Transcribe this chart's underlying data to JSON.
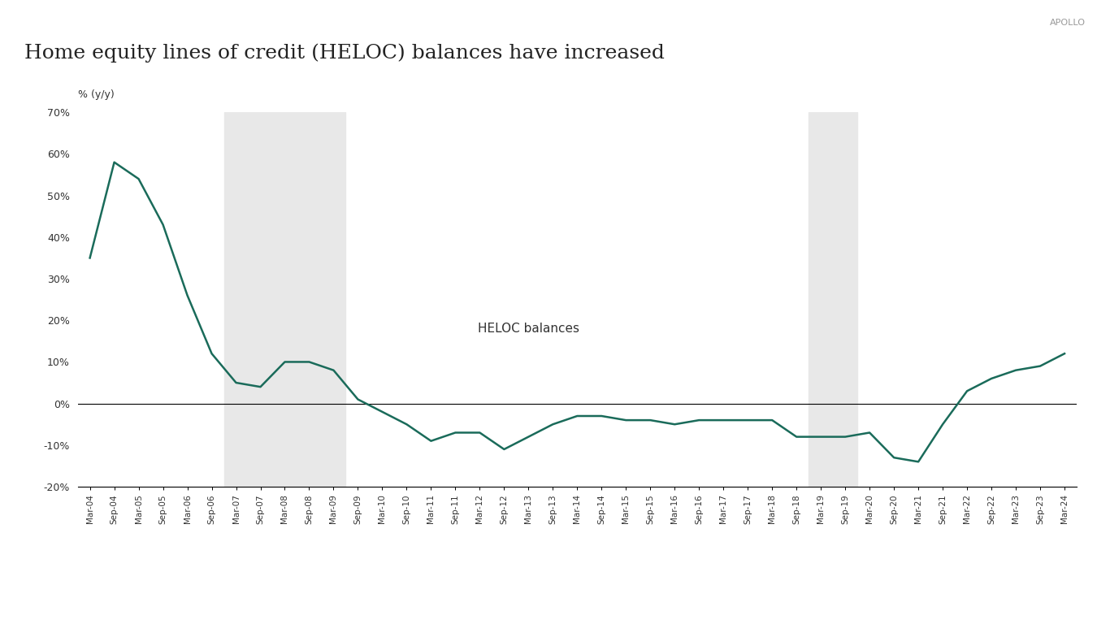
{
  "title": "Home equity lines of credit (HELOC) balances have increased",
  "watermark": "APOLLO",
  "ylabel": "% (y/y)",
  "legend_label": "HELOC balances",
  "line_color": "#1a6b5a",
  "background_color": "#ffffff",
  "shading_color": "#e8e8e8",
  "recession_bands": [
    [
      "Mar-07",
      "Mar-09"
    ],
    [
      "Mar-19",
      "Sep-19"
    ]
  ],
  "ylim": [
    -20,
    70
  ],
  "yticks": [
    -20,
    -10,
    0,
    10,
    20,
    30,
    40,
    50,
    60,
    70
  ],
  "dates": [
    "Mar-04",
    "Sep-04",
    "Mar-05",
    "Sep-05",
    "Mar-06",
    "Sep-06",
    "Mar-07",
    "Sep-07",
    "Mar-08",
    "Sep-08",
    "Mar-09",
    "Sep-09",
    "Mar-10",
    "Sep-10",
    "Mar-11",
    "Sep-11",
    "Mar-12",
    "Sep-12",
    "Mar-13",
    "Sep-13",
    "Mar-14",
    "Sep-14",
    "Mar-15",
    "Sep-15",
    "Mar-16",
    "Sep-16",
    "Mar-17",
    "Sep-17",
    "Mar-18",
    "Sep-18",
    "Mar-19",
    "Sep-19",
    "Mar-20",
    "Sep-20",
    "Mar-21",
    "Sep-21",
    "Mar-22",
    "Sep-22",
    "Mar-23",
    "Sep-23",
    "Mar-24"
  ],
  "values": [
    35,
    58,
    54,
    43,
    26,
    12,
    5,
    4,
    10,
    10,
    8,
    1,
    -2,
    -5,
    -9,
    -7,
    -7,
    -11,
    -8,
    -5,
    -3,
    -3,
    -4,
    -4,
    -5,
    -4,
    -4,
    -4,
    -4,
    -8,
    -8,
    -8,
    -7,
    -13,
    -14,
    -5,
    3,
    6,
    8,
    9,
    12
  ]
}
